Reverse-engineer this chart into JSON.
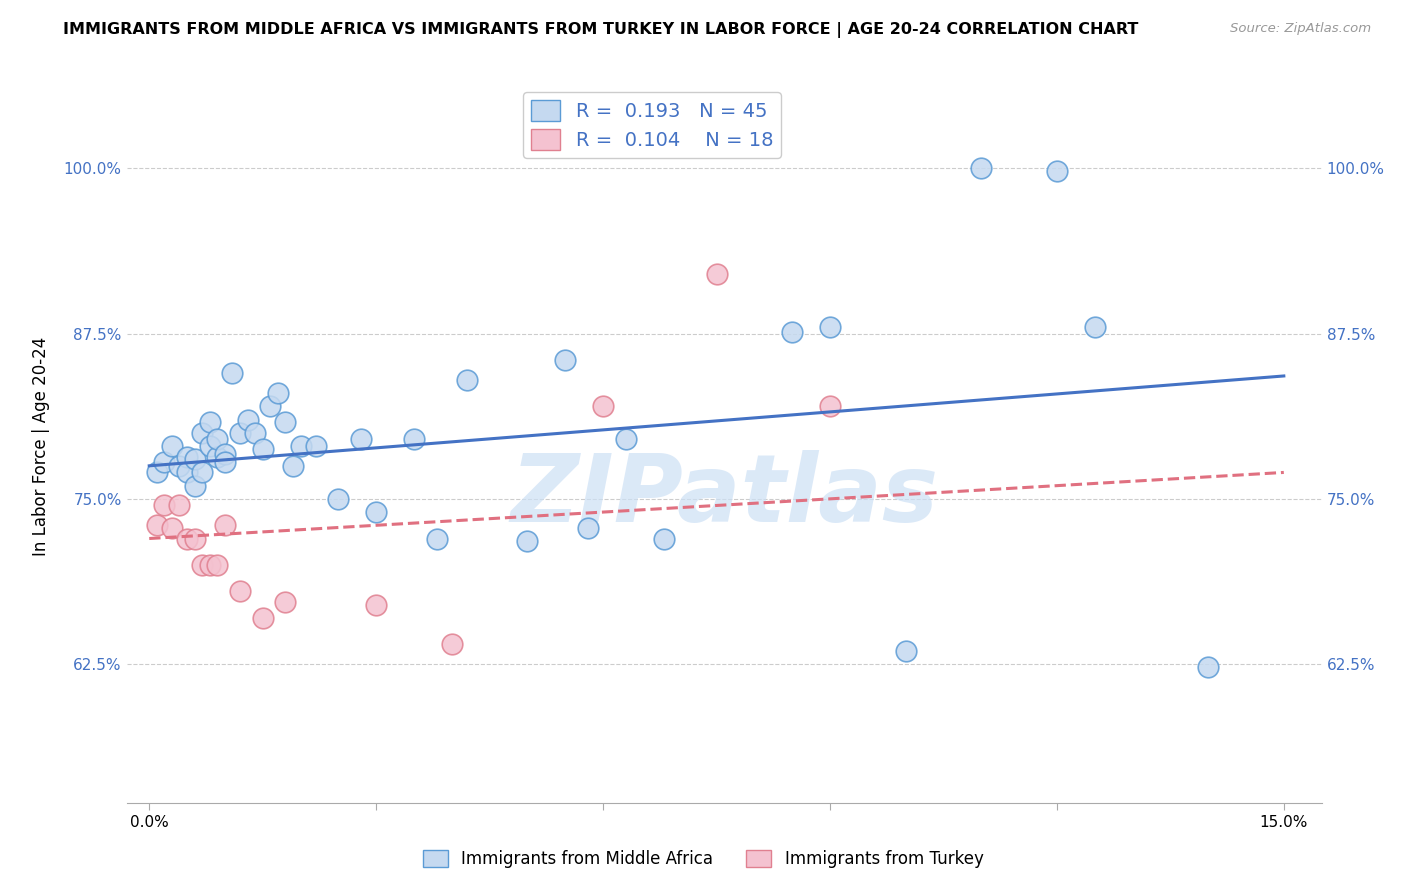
{
  "title": "IMMIGRANTS FROM MIDDLE AFRICA VS IMMIGRANTS FROM TURKEY IN LABOR FORCE | AGE 20-24 CORRELATION CHART",
  "source": "Source: ZipAtlas.com",
  "ylabel": "In Labor Force | Age 20-24",
  "xlim": [
    -0.003,
    0.155
  ],
  "ylim": [
    0.52,
    1.06
  ],
  "xticks": [
    0.0,
    0.03,
    0.06,
    0.09,
    0.12,
    0.15
  ],
  "xtick_labels": [
    "0.0%",
    "",
    "",
    "",
    "",
    "15.0%"
  ],
  "yticks": [
    0.625,
    0.75,
    0.875,
    1.0
  ],
  "ytick_labels": [
    "62.5%",
    "75.0%",
    "87.5%",
    "100.0%"
  ],
  "blue_R": "0.193",
  "blue_N": "45",
  "pink_R": "0.104",
  "pink_N": "18",
  "blue_fill": "#c5d9f0",
  "blue_edge": "#5b9bd5",
  "pink_fill": "#f4c2d0",
  "pink_edge": "#e08090",
  "trend_blue": "#4472c4",
  "trend_pink": "#e07080",
  "watermark": "ZIPatlas",
  "watermark_color": "#cce0f5",
  "legend_color": "#4472c4",
  "blue_x": [
    0.001,
    0.002,
    0.003,
    0.004,
    0.005,
    0.005,
    0.006,
    0.006,
    0.007,
    0.007,
    0.008,
    0.008,
    0.009,
    0.009,
    0.01,
    0.01,
    0.011,
    0.012,
    0.013,
    0.014,
    0.015,
    0.016,
    0.017,
    0.018,
    0.019,
    0.02,
    0.022,
    0.025,
    0.028,
    0.03,
    0.035,
    0.038,
    0.042,
    0.05,
    0.055,
    0.058,
    0.063,
    0.068,
    0.085,
    0.09,
    0.1,
    0.11,
    0.12,
    0.125,
    0.14
  ],
  "blue_y": [
    0.77,
    0.778,
    0.79,
    0.775,
    0.782,
    0.77,
    0.78,
    0.76,
    0.8,
    0.77,
    0.808,
    0.79,
    0.782,
    0.795,
    0.784,
    0.778,
    0.845,
    0.8,
    0.81,
    0.8,
    0.788,
    0.82,
    0.83,
    0.808,
    0.775,
    0.79,
    0.79,
    0.75,
    0.795,
    0.74,
    0.795,
    0.72,
    0.84,
    0.718,
    0.855,
    0.728,
    0.795,
    0.72,
    0.876,
    0.88,
    0.635,
    1.0,
    0.998,
    0.88,
    0.623
  ],
  "pink_x": [
    0.001,
    0.002,
    0.003,
    0.004,
    0.005,
    0.006,
    0.007,
    0.008,
    0.009,
    0.01,
    0.012,
    0.015,
    0.018,
    0.03,
    0.04,
    0.06,
    0.075,
    0.09
  ],
  "pink_y": [
    0.73,
    0.745,
    0.728,
    0.745,
    0.72,
    0.72,
    0.7,
    0.7,
    0.7,
    0.73,
    0.68,
    0.66,
    0.672,
    0.67,
    0.64,
    0.82,
    0.92,
    0.82
  ],
  "blue_trend_x0": 0.0,
  "blue_trend_y0": 0.775,
  "blue_trend_x1": 0.15,
  "blue_trend_y1": 0.843,
  "pink_trend_x0": 0.0,
  "pink_trend_y0": 0.72,
  "pink_trend_x1": 0.15,
  "pink_trend_y1": 0.77
}
